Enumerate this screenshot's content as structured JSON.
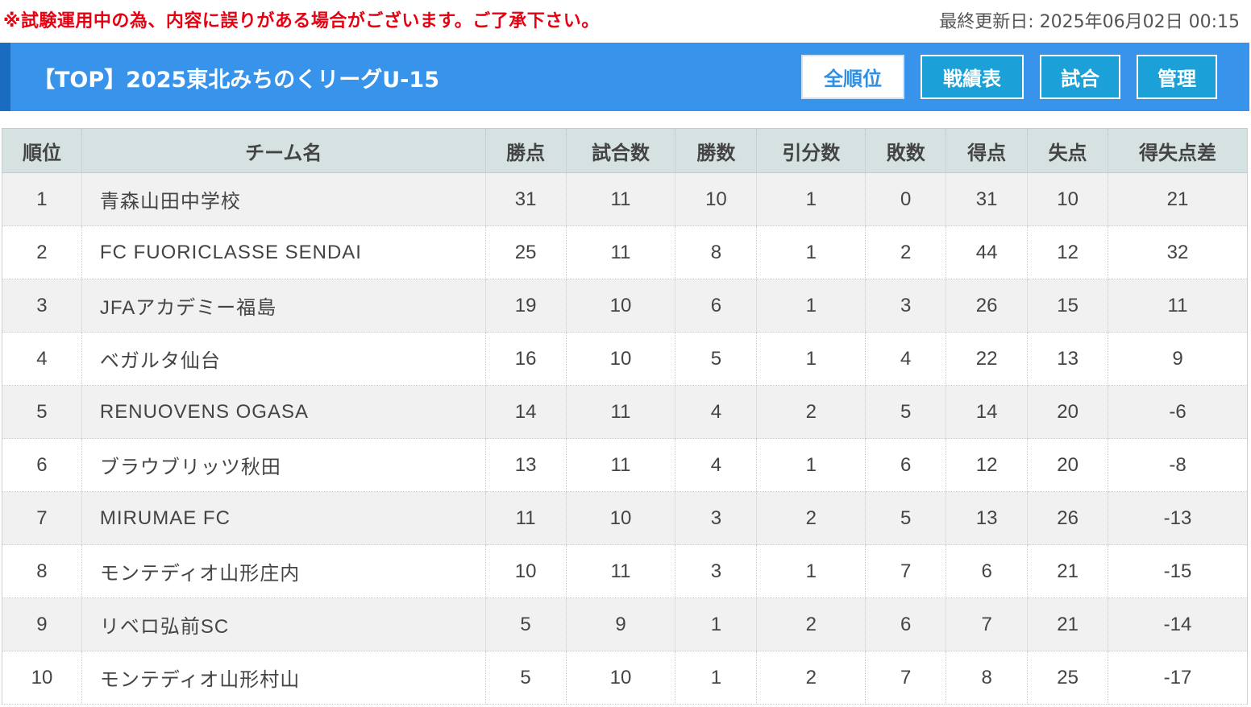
{
  "notice": "※試験運用中の為、内容に誤りがある場合がございます。ご了承下さい。",
  "updated": "最終更新日: 2025年06月02日 00:15",
  "header": {
    "title": "【TOP】2025東北みちのくリーグU-15",
    "buttons": {
      "standings": "全順位",
      "results": "戦績表",
      "matches": "試合",
      "admin": "管理"
    }
  },
  "colors": {
    "notice": "#e60012",
    "header_bg": "#3794ea",
    "header_accent": "#1a6cc0",
    "button_secondary": "#1ba0d8",
    "table_header_bg": "#d6e1e1",
    "row_odd_bg": "#f1f1f1"
  },
  "table": {
    "columns": [
      "順位",
      "チーム名",
      "勝点",
      "試合数",
      "勝数",
      "引分数",
      "敗数",
      "得点",
      "失点",
      "得失点差"
    ],
    "rows": [
      [
        "1",
        "青森山田中学校",
        "31",
        "11",
        "10",
        "1",
        "0",
        "31",
        "10",
        "21"
      ],
      [
        "2",
        "FC FUORICLASSE SENDAI",
        "25",
        "11",
        "8",
        "1",
        "2",
        "44",
        "12",
        "32"
      ],
      [
        "3",
        "JFAアカデミー福島",
        "19",
        "10",
        "6",
        "1",
        "3",
        "26",
        "15",
        "11"
      ],
      [
        "4",
        "ベガルタ仙台",
        "16",
        "10",
        "5",
        "1",
        "4",
        "22",
        "13",
        "9"
      ],
      [
        "5",
        "RENUOVENS OGASA",
        "14",
        "11",
        "4",
        "2",
        "5",
        "14",
        "20",
        "-6"
      ],
      [
        "6",
        "ブラウブリッツ秋田",
        "13",
        "11",
        "4",
        "1",
        "6",
        "12",
        "20",
        "-8"
      ],
      [
        "7",
        "MIRUMAE FC",
        "11",
        "10",
        "3",
        "2",
        "5",
        "13",
        "26",
        "-13"
      ],
      [
        "8",
        "モンテディオ山形庄内",
        "10",
        "11",
        "3",
        "1",
        "7",
        "6",
        "21",
        "-15"
      ],
      [
        "9",
        "リベロ弘前SC",
        "5",
        "9",
        "1",
        "2",
        "6",
        "7",
        "21",
        "-14"
      ],
      [
        "10",
        "モンテディオ山形村山",
        "5",
        "10",
        "1",
        "2",
        "7",
        "8",
        "25",
        "-17"
      ]
    ]
  }
}
